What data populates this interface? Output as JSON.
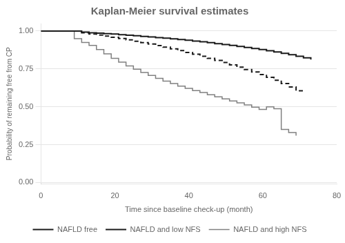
{
  "chart_data": {
    "type": "line",
    "title": "Kaplan-Meier survival estimates",
    "xlabel": "Time since baseline check-up (month)",
    "ylabel": "Probability of remaining free from CP",
    "xlim": [
      0,
      80
    ],
    "ylim": [
      -0.01,
      1.05
    ],
    "xticks": [
      0,
      20,
      40,
      60,
      80
    ],
    "yticks": [
      {
        "value": 0,
        "label": "0.00"
      },
      0.25,
      {
        "value": 0.5,
        "label": "0.50"
      },
      0.75,
      {
        "value": 1,
        "label": "1.00"
      }
    ],
    "grid": "y",
    "legend": "bottom",
    "series": [
      {
        "name": "NAFLD free",
        "color": "#1a1a1a",
        "line_style": "solid",
        "x": [
          0,
          11,
          13,
          15,
          17,
          19,
          21,
          23,
          25,
          27,
          29,
          31,
          33,
          35,
          37,
          39,
          41,
          43,
          45,
          47,
          49,
          51,
          53,
          55,
          57,
          59,
          61,
          63,
          65,
          67,
          69,
          71,
          73
        ],
        "values": [
          1.0,
          0.993,
          0.989,
          0.986,
          0.983,
          0.98,
          0.976,
          0.973,
          0.969,
          0.965,
          0.961,
          0.957,
          0.953,
          0.949,
          0.944,
          0.939,
          0.934,
          0.929,
          0.923,
          0.917,
          0.911,
          0.905,
          0.899,
          0.892,
          0.885,
          0.878,
          0.87,
          0.862,
          0.853,
          0.844,
          0.834,
          0.823,
          0.812
        ]
      },
      {
        "name": "NAFLD and low NFS",
        "color": "#1a1a1a",
        "line_style": "dashed",
        "x": [
          0,
          11,
          13,
          15,
          17,
          19,
          21,
          23,
          25,
          27,
          29,
          31,
          33,
          35,
          37,
          39,
          41,
          43,
          45,
          47,
          49,
          51,
          53,
          55,
          57,
          59,
          61,
          63,
          65,
          67,
          69,
          71
        ],
        "values": [
          1.0,
          0.988,
          0.981,
          0.974,
          0.967,
          0.959,
          0.951,
          0.942,
          0.933,
          0.924,
          0.914,
          0.904,
          0.894,
          0.883,
          0.871,
          0.859,
          0.847,
          0.834,
          0.82,
          0.806,
          0.792,
          0.777,
          0.762,
          0.746,
          0.73,
          0.713,
          0.694,
          0.675,
          0.654,
          0.631,
          0.606,
          0.618
        ]
      },
      {
        "name": "NAFLD and high NFS",
        "color": "#808080",
        "line_style": "solid",
        "x": [
          0,
          9,
          11,
          13,
          15,
          17,
          19,
          21,
          23,
          25,
          27,
          29,
          31,
          33,
          35,
          37,
          39,
          41,
          43,
          45,
          47,
          49,
          51,
          53,
          55,
          57,
          59,
          61,
          63,
          65,
          67,
          69
        ],
        "values": [
          1.0,
          0.95,
          0.925,
          0.905,
          0.878,
          0.85,
          0.82,
          0.795,
          0.77,
          0.748,
          0.727,
          0.707,
          0.688,
          0.67,
          0.653,
          0.637,
          0.622,
          0.607,
          0.594,
          0.58,
          0.566,
          0.552,
          0.539,
          0.526,
          0.512,
          0.498,
          0.483,
          0.5,
          0.487,
          0.35,
          0.33,
          0.31
        ]
      }
    ]
  }
}
